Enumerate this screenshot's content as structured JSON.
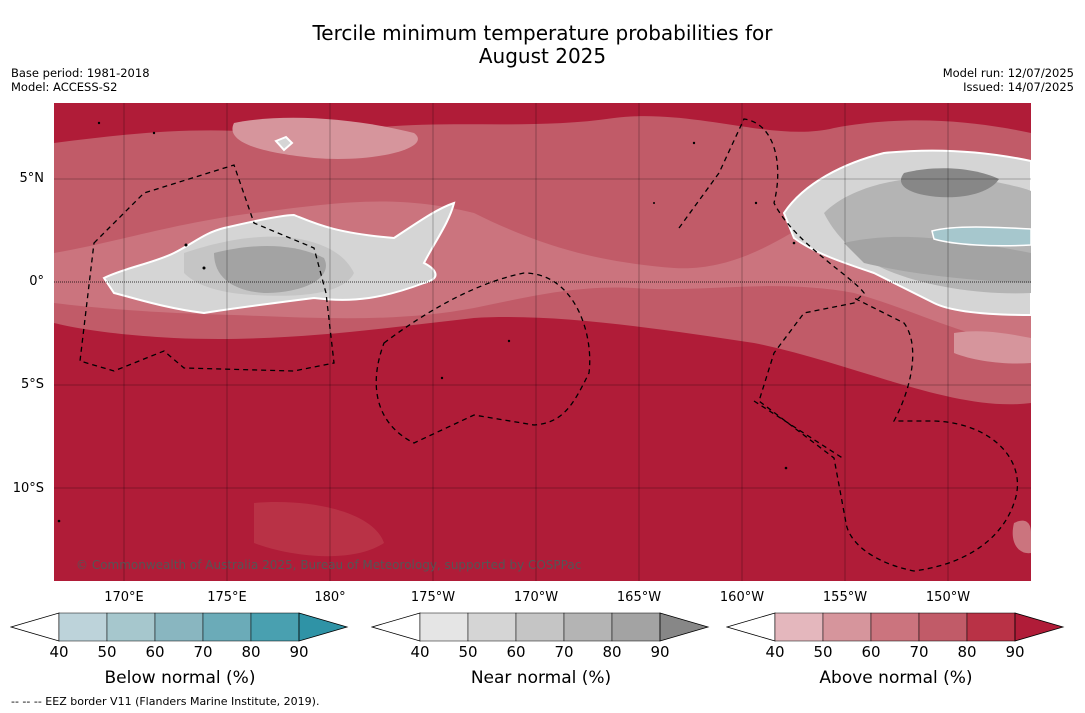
{
  "title": {
    "line1": "Tercile minimum temperature probabilities for",
    "line2": "August 2025"
  },
  "meta_left": {
    "base_period": "Base period: 1981-2018",
    "model": "Model: ACCESS-S2"
  },
  "meta_right": {
    "model_run": "Model run: 12/07/2025",
    "issued": "Issued: 14/07/2025"
  },
  "map": {
    "lat_labels": [
      "5°N",
      "0°",
      "5°S",
      "10°S"
    ],
    "lon_labels": [
      "170°E",
      "175°E",
      "180°",
      "175°W",
      "170°W",
      "165°W",
      "160°W",
      "155°W",
      "150°W"
    ],
    "copyright": "© Commonwealth of Australia 2025, Bureau of Meteorology, supported by COSPPac"
  },
  "colorbars": [
    {
      "label": "Below normal (%)",
      "ticks": [
        "40",
        "50",
        "60",
        "70",
        "80",
        "90"
      ],
      "colors": [
        "#bdd3da",
        "#a6c7cd",
        "#89b6c0",
        "#6babb8",
        "#49a0b0",
        "#2f93a6"
      ]
    },
    {
      "label": "Near normal (%)",
      "ticks": [
        "40",
        "50",
        "60",
        "70",
        "80",
        "90"
      ],
      "colors": [
        "#e5e5e5",
        "#d5d5d5",
        "#c5c5c5",
        "#b4b4b4",
        "#a3a3a3",
        "#878787"
      ]
    },
    {
      "label": "Above normal (%)",
      "ticks": [
        "40",
        "50",
        "60",
        "70",
        "80",
        "90"
      ],
      "colors": [
        "#e4b7bd",
        "#d6959c",
        "#cb747e",
        "#c15b68",
        "#b93246",
        "#b01c38"
      ]
    }
  ],
  "footer": "--  --  -- EEZ border V11 (Flanders Marine Institute, 2019)."
}
